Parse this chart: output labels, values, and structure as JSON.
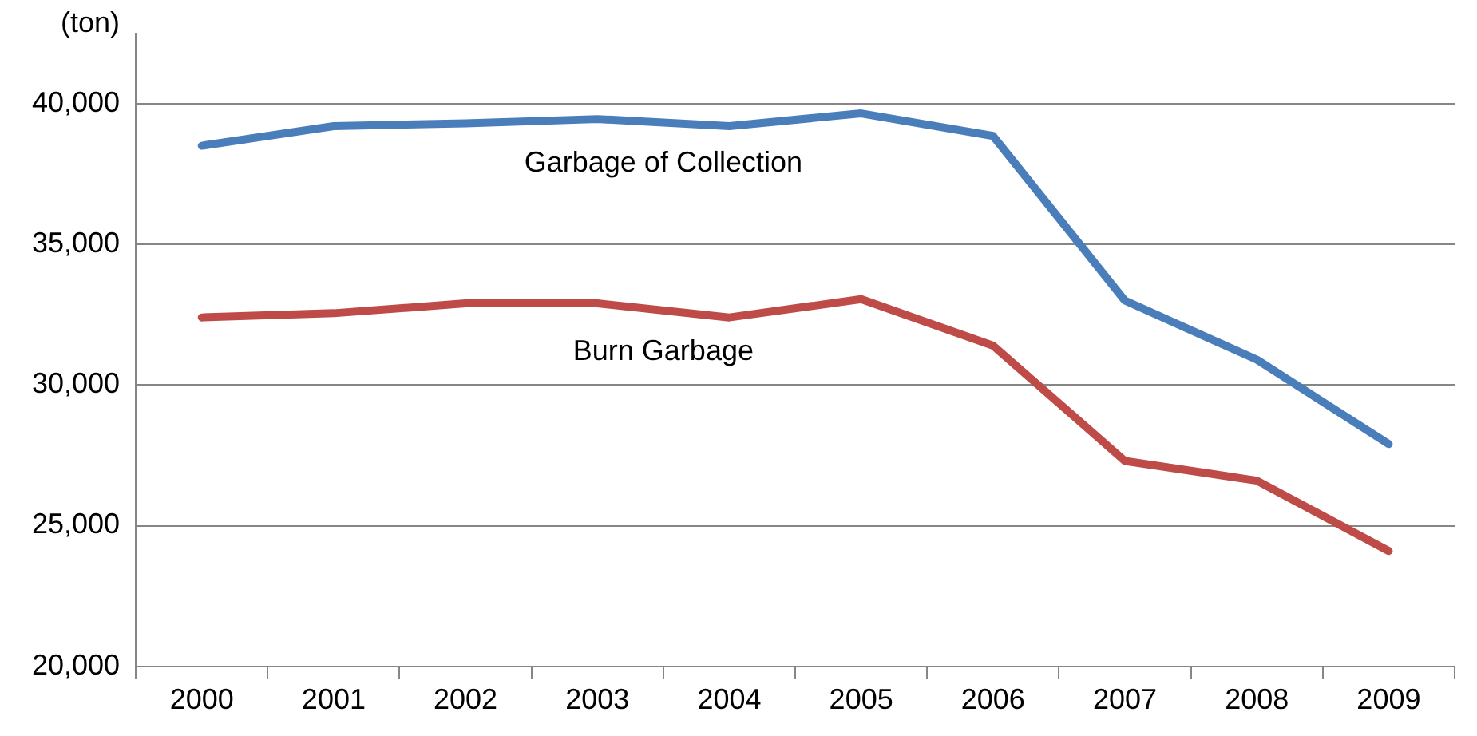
{
  "chart_data": {
    "type": "line",
    "ylabel": "(ton)",
    "categories": [
      "2000",
      "2001",
      "2002",
      "2003",
      "2004",
      "2005",
      "2006",
      "2007",
      "2008",
      "2009"
    ],
    "series": [
      {
        "name": "Garbage of Collection",
        "color": "#4a7ebb",
        "values": [
          38500,
          39200,
          39300,
          39450,
          39200,
          39650,
          38850,
          33000,
          30900,
          27900
        ]
      },
      {
        "name": "Burn Garbage",
        "color": "#be4b48",
        "values": [
          32400,
          32550,
          32900,
          32900,
          32400,
          33050,
          31400,
          27300,
          26600,
          24100
        ]
      }
    ],
    "ylim": [
      20000,
      42500
    ],
    "yticks": [
      {
        "value": 20000,
        "label": "20,000"
      },
      {
        "value": 25000,
        "label": "25,000"
      },
      {
        "value": 30000,
        "label": "30,000"
      },
      {
        "value": 35000,
        "label": "35,000"
      },
      {
        "value": 40000,
        "label": "40,000"
      }
    ],
    "grid": "y",
    "legend": false,
    "marker": "none",
    "line_style": "solid"
  }
}
